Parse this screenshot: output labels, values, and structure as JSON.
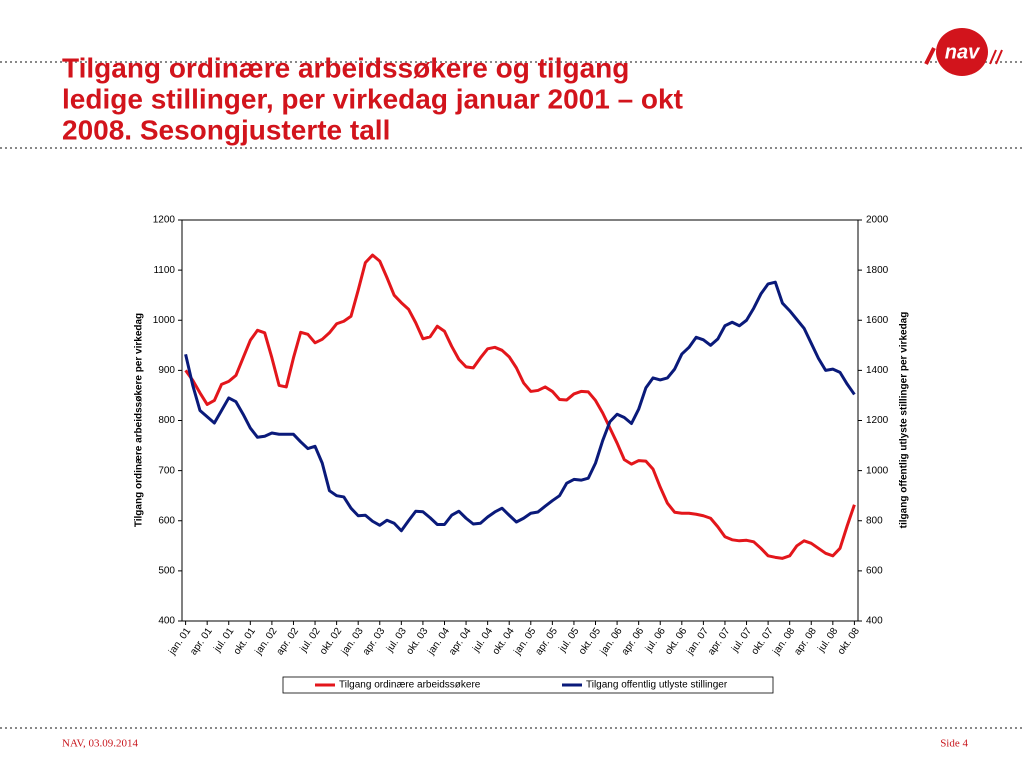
{
  "slide": {
    "title_lines": [
      "Tilgang ordinære arbeidssøkere og tilgang",
      "ledige stillinger, per virkedag januar 2001 – okt",
      "2008. Sesongjusterte tall"
    ],
    "logo": "nav",
    "footer_left": "NAV, 03.09.2014",
    "footer_right": "Side 4"
  },
  "chart_data": {
    "type": "line",
    "ylabel": "Tilgang ordinære arbeidssøkere per virkedag",
    "y2label": "tilgang offentlig utlyste stillinger per virkedag",
    "categories": [
      "jan. 01",
      null,
      null,
      "apr. 01",
      null,
      null,
      "jul. 01",
      null,
      null,
      "okt. 01",
      null,
      null,
      "jan. 02",
      null,
      null,
      "apr. 02",
      null,
      null,
      "jul. 02",
      null,
      null,
      "okt. 02",
      null,
      null,
      "jan. 03",
      null,
      null,
      "apr. 03",
      null,
      null,
      "jul. 03",
      null,
      null,
      "okt. 03",
      null,
      null,
      "jan. 04",
      null,
      null,
      "apr. 04",
      null,
      null,
      "jul. 04",
      null,
      null,
      "okt. 04",
      null,
      null,
      "jan. 05",
      null,
      null,
      "apr. 05",
      null,
      null,
      "jul. 05",
      null,
      null,
      "okt. 05",
      null,
      null,
      "jan. 06",
      null,
      null,
      "apr. 06",
      null,
      null,
      "jul. 06",
      null,
      null,
      "okt. 06",
      null,
      null,
      "jan. 07",
      null,
      null,
      "apr. 07",
      null,
      null,
      "jul. 07",
      null,
      null,
      "okt. 07",
      null,
      null,
      "jan. 08",
      null,
      null,
      "apr. 08",
      null,
      null,
      "jul. 08",
      null,
      null,
      "okt. 08"
    ],
    "series": [
      {
        "name": "Tilgang ordinære arbeidssøkere",
        "color": "#e3161b",
        "axis": "y",
        "values": [
          900,
          880,
          855,
          832,
          840,
          872,
          878,
          890,
          925,
          960,
          980,
          975,
          925,
          870,
          867,
          925,
          976,
          972,
          955,
          962,
          975,
          993,
          998,
          1008,
          1060,
          1115,
          1130,
          1118,
          1085,
          1050,
          1035,
          1022,
          995,
          963,
          967,
          988,
          978,
          948,
          922,
          907,
          905,
          925,
          943,
          946,
          940,
          927,
          905,
          875,
          858,
          860,
          867,
          858,
          842,
          841,
          853,
          858,
          857,
          840,
          815,
          785,
          755,
          722,
          713,
          720,
          719,
          703,
          667,
          635,
          617,
          615,
          615,
          613,
          610,
          605,
          588,
          568,
          562,
          560,
          561,
          558,
          545,
          530,
          527,
          525,
          530,
          550,
          560,
          555,
          545,
          535,
          530,
          545,
          590,
          632
        ]
      },
      {
        "name": "Tilgang offentlig utlyste stillinger",
        "color": "#0a1a7a",
        "axis": "y2",
        "values": [
          1464,
          1340,
          1240,
          1215,
          1190,
          1240,
          1290,
          1275,
          1225,
          1170,
          1133,
          1137,
          1150,
          1145,
          1145,
          1145,
          1115,
          1088,
          1097,
          1030,
          920,
          900,
          895,
          850,
          820,
          822,
          798,
          782,
          802,
          790,
          760,
          800,
          838,
          836,
          812,
          785,
          785,
          822,
          838,
          810,
          787,
          790,
          815,
          835,
          850,
          822,
          795,
          810,
          830,
          835,
          858,
          880,
          900,
          950,
          965,
          962,
          970,
          1030,
          1120,
          1195,
          1225,
          1212,
          1188,
          1245,
          1330,
          1370,
          1362,
          1370,
          1405,
          1465,
          1492,
          1532,
          1522,
          1500,
          1525,
          1578,
          1592,
          1578,
          1600,
          1648,
          1705,
          1745,
          1752,
          1668,
          1638,
          1603,
          1568,
          1508,
          1448,
          1400,
          1405,
          1392,
          1345,
          1304
        ]
      }
    ],
    "ylim": [
      400,
      1200
    ],
    "yticks": [
      400,
      500,
      600,
      700,
      800,
      900,
      1000,
      1100,
      1200
    ],
    "y2lim": [
      400,
      2000
    ],
    "y2ticks": [
      400,
      600,
      800,
      1000,
      1200,
      1400,
      1600,
      1800,
      2000
    ],
    "grid": false,
    "legend": "bottom"
  }
}
